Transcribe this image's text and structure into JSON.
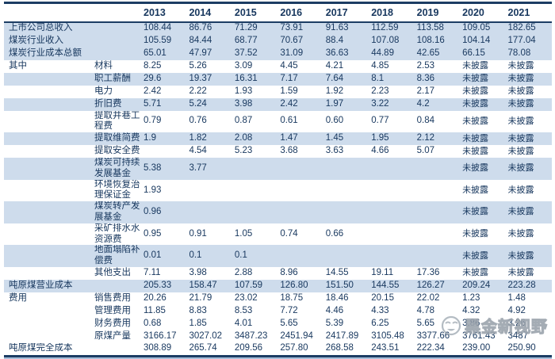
{
  "colors": {
    "text_navy": "#17375E",
    "stripe_blue": "#CEDCEC",
    "border_navy": "#1C3D64",
    "watermark_gray": "#9CA6B0"
  },
  "watermark": {
    "icon": "smiley-face",
    "text": "黑金新视野"
  },
  "table": {
    "years": [
      "2013",
      "2014",
      "2015",
      "2016",
      "2017",
      "2018",
      "2019",
      "2020",
      "2021"
    ],
    "not_disclosed_label": "未披露",
    "rows": [
      {
        "label1": "上市公司总收入",
        "label2": "",
        "shade": true,
        "tall": false,
        "values": [
          "108.44",
          "86.76",
          "71.29",
          "73.91",
          "91.63",
          "112.59",
          "113.58",
          "109.05",
          "182.65"
        ]
      },
      {
        "label1": "煤炭行业收入",
        "label2": "",
        "shade": true,
        "tall": false,
        "values": [
          "105.59",
          "84.44",
          "68.77",
          "70.67",
          "88.4",
          "107.08",
          "108.16",
          "104.14",
          "177.04"
        ]
      },
      {
        "label1": "煤炭行业成本总额",
        "label2": "",
        "shade": true,
        "tall": false,
        "values": [
          "65.01",
          "47.97",
          "37.52",
          "31.09",
          "36.63",
          "44.89",
          "42.65",
          "66.15",
          "78.08"
        ]
      },
      {
        "label1": "其中",
        "label2": "材料",
        "shade": false,
        "tall": false,
        "values": [
          "8.25",
          "5.26",
          "3.09",
          "4.45",
          "4.21",
          "4.85",
          "2.53",
          "未披露",
          "未披露"
        ]
      },
      {
        "label1": "",
        "label2": "职工薪酬",
        "shade": true,
        "tall": false,
        "values": [
          "29.6",
          "19.37",
          "16.31",
          "7.17",
          "7.64",
          "8.1",
          "8.36",
          "未披露",
          "未披露"
        ]
      },
      {
        "label1": "",
        "label2": "电力",
        "shade": false,
        "tall": false,
        "values": [
          "2.42",
          "2.22",
          "1.93",
          "1.59",
          "1.92",
          "2.23",
          "2.17",
          "未披露",
          "未披露"
        ]
      },
      {
        "label1": "",
        "label2": "折旧费",
        "shade": true,
        "tall": false,
        "values": [
          "5.71",
          "5.24",
          "3.98",
          "2.42",
          "1.97",
          "3.22",
          "4.2",
          "未披露",
          "未披露"
        ]
      },
      {
        "label1": "",
        "label2": "提取井巷工程费",
        "shade": false,
        "tall": true,
        "values": [
          "0.79",
          "0.76",
          "0.87",
          "0.61",
          "0.60",
          "0.77",
          "0.84",
          "未披露",
          "未披露"
        ]
      },
      {
        "label1": "",
        "label2": "提取维简费",
        "shade": true,
        "tall": false,
        "values": [
          "1.9",
          "1.82",
          "2.08",
          "1.47",
          "1.45",
          "1.95",
          "2.12",
          "未披露",
          "未披露"
        ]
      },
      {
        "label1": "",
        "label2": "提取安全费",
        "shade": false,
        "tall": false,
        "values": [
          "",
          "4.54",
          "5.23",
          "3.68",
          "3.63",
          "4.66",
          "5.07",
          "未披露",
          "未披露"
        ]
      },
      {
        "label1": "",
        "label2": "煤炭可持续发展基金",
        "shade": true,
        "tall": true,
        "values": [
          "5.38",
          "3.77",
          "",
          "",
          "",
          "",
          "",
          "未披露",
          "未披露"
        ]
      },
      {
        "label1": "",
        "label2": "环境恢复治理保证金",
        "shade": false,
        "tall": true,
        "values": [
          "1.93",
          "",
          "",
          "",
          "",
          "",
          "",
          "未披露",
          "未披露"
        ]
      },
      {
        "label1": "",
        "label2": "煤炭转产发展基金",
        "shade": true,
        "tall": true,
        "values": [
          "0.96",
          "",
          "",
          "",
          "",
          "",
          "",
          "未披露",
          "未披露"
        ]
      },
      {
        "label1": "",
        "label2": "采矿排水水资源费",
        "shade": false,
        "tall": true,
        "values": [
          "0.95",
          "0.91",
          "1.05",
          "0.74",
          "0.66",
          "",
          "",
          "未披露",
          "未披露"
        ]
      },
      {
        "label1": "",
        "label2": "地面塌陷补偿费",
        "shade": true,
        "tall": true,
        "values": [
          "0.01",
          "0.1",
          "0.1",
          "",
          "",
          "",
          "",
          "未披露",
          "未披露"
        ]
      },
      {
        "label1": "",
        "label2": "其他支出",
        "shade": false,
        "tall": false,
        "values": [
          "7.11",
          "3.98",
          "2.88",
          "8.96",
          "14.55",
          "19.11",
          "17.36",
          "未披露",
          "未披露"
        ]
      },
      {
        "label1": "吨原煤营业成本",
        "label2": "",
        "shade": true,
        "tall": false,
        "values": [
          "205.33",
          "158.47",
          "107.59",
          "126.80",
          "151.50",
          "144.55",
          "126.27",
          "209.24",
          "223.28"
        ]
      },
      {
        "label1": "费用",
        "label2": "销售费用",
        "shade": false,
        "tall": false,
        "values": [
          "20.26",
          "21.79",
          "23.02",
          "18.75",
          "18.46",
          "20.15",
          "22.02",
          "1.23",
          "1.48"
        ]
      },
      {
        "label1": "",
        "label2": "管理费用",
        "shade": false,
        "tall": false,
        "values": [
          "11.85",
          "8.83",
          "8.53",
          "7.72",
          "4.46",
          "4.33",
          "4.78",
          "4.32",
          "4.92"
        ]
      },
      {
        "label1": "",
        "label2": "财务费用",
        "shade": false,
        "tall": false,
        "values": [
          "0.68",
          "1.85",
          "4.01",
          "5.65",
          "5.39",
          "6.25",
          "5.65",
          "3.86",
          "3.26"
        ]
      },
      {
        "label1": "",
        "label2": "原煤产量",
        "shade": false,
        "tall": false,
        "values": [
          "3166.17",
          "3027.02",
          "3487.23",
          "2451.94",
          "2417.89",
          "3105.48",
          "3377.66",
          "3761.43",
          "3487"
        ]
      },
      {
        "label1": "吨原煤完全成本",
        "label2": "",
        "shade": false,
        "tall": false,
        "values": [
          "308.89",
          "265.74",
          "209.56",
          "257.80",
          "268.58",
          "243.51",
          "222.34",
          "239.00",
          "250.90"
        ]
      }
    ]
  }
}
